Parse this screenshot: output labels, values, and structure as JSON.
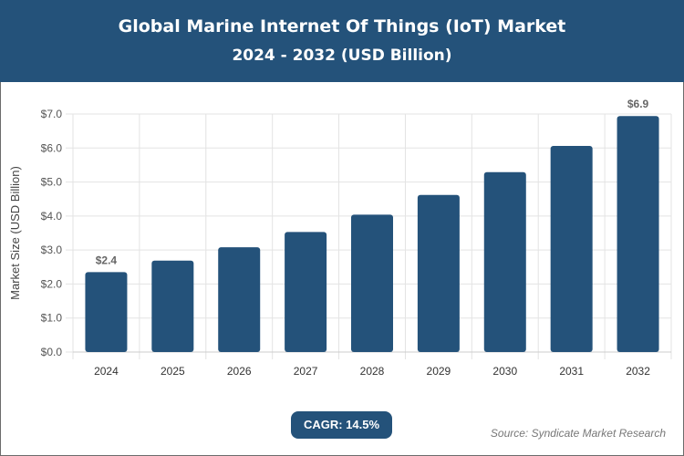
{
  "header": {
    "title": "Global Marine Internet Of Things (IoT) Market",
    "subtitle": "2024 - 2032 (USD Billion)"
  },
  "chart_data": {
    "type": "bar",
    "categories": [
      "2024",
      "2025",
      "2026",
      "2027",
      "2028",
      "2029",
      "2030",
      "2031",
      "2032"
    ],
    "values": [
      2.35,
      2.69,
      3.08,
      3.53,
      4.04,
      4.62,
      5.29,
      6.06,
      6.94
    ],
    "data_labels": {
      "2024": "$2.4",
      "2032": "$6.9"
    },
    "ylabel": "Market Size (USD Billion)",
    "xlabel": "",
    "ylim": [
      0,
      7
    ],
    "yticks": [
      "$0.0",
      "$1.0",
      "$2.0",
      "$3.0",
      "$4.0",
      "$5.0",
      "$6.0",
      "$7.0"
    ],
    "grid": true,
    "bar_color": "#24527a"
  },
  "footer": {
    "cagr": "CAGR: 14.5%",
    "source": "Source: Syndicate Market Research"
  }
}
